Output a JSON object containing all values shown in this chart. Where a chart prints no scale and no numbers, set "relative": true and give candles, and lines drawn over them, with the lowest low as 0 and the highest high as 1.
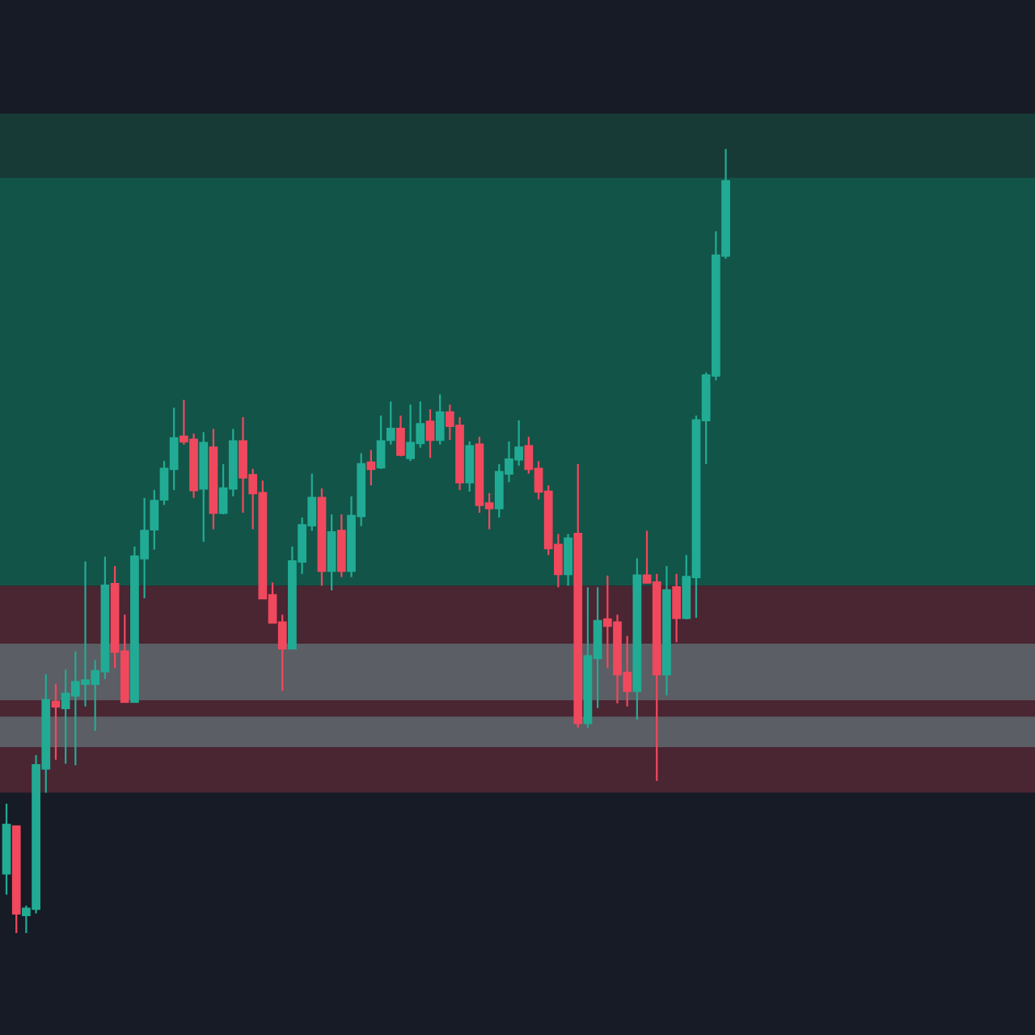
{
  "chart_data": {
    "type": "candlestick",
    "relative": true,
    "categories": [
      null,
      null,
      null,
      null,
      null,
      null,
      null,
      null,
      null,
      null,
      null,
      null,
      null,
      null,
      null,
      null,
      null,
      null,
      null,
      null,
      null,
      null,
      null,
      null,
      null,
      null,
      null,
      null,
      null,
      null,
      null,
      null,
      null,
      null,
      null,
      null,
      null,
      null,
      null,
      null,
      null,
      null,
      null,
      null,
      null,
      null,
      null,
      null,
      null,
      null,
      null,
      null,
      null,
      null,
      null,
      null,
      null,
      null,
      null,
      null,
      null,
      null,
      null,
      null,
      null,
      null,
      null,
      null,
      null,
      null,
      null,
      null,
      null,
      null
    ],
    "ohlc": [
      [
        0.076,
        0.165,
        0.049,
        0.138
      ],
      [
        0.136,
        0.136,
        0,
        0.025
      ],
      [
        0.023,
        0.035,
        0,
        0.031
      ],
      [
        0.031,
        0.227,
        0.025,
        0.214
      ],
      [
        0.21,
        0.33,
        0.179,
        0.297
      ],
      [
        0.295,
        0.318,
        0.221,
        0.289
      ],
      [
        0.287,
        0.336,
        0.216,
        0.305
      ],
      [
        0.303,
        0.359,
        0.214,
        0.32
      ],
      [
        0.318,
        0.474,
        0.289,
        0.322
      ],
      [
        0.318,
        0.348,
        0.258,
        0.334
      ],
      [
        0.334,
        0.48,
        0.324,
        0.443
      ],
      [
        0.445,
        0.468,
        0.338,
        0.359
      ],
      [
        0.359,
        0.406,
        0.295,
        0.295
      ],
      [
        0.295,
        0.493,
        0.295,
        0.48
      ],
      [
        0.478,
        0.555,
        0.427,
        0.513
      ],
      [
        0.515,
        0.565,
        0.489,
        0.551
      ],
      [
        0.553,
        0.602,
        0.546,
        0.592
      ],
      [
        0.592,
        0.67,
        0.565,
        0.631
      ],
      [
        0.633,
        0.68,
        0.623,
        0.627
      ],
      [
        0.629,
        0.637,
        0.555,
        0.565
      ],
      [
        0.567,
        0.639,
        0.499,
        0.625
      ],
      [
        0.619,
        0.643,
        0.515,
        0.536
      ],
      [
        0.536,
        0.598,
        0.534,
        0.567
      ],
      [
        0.567,
        0.643,
        0.557,
        0.627
      ],
      [
        0.627,
        0.658,
        0.536,
        0.581
      ],
      [
        0.584,
        0.592,
        0.515,
        0.561
      ],
      [
        0.561,
        0.577,
        0.427,
        0.427
      ],
      [
        0.431,
        0.447,
        0.396,
        0.396
      ],
      [
        0.396,
        0.406,
        0.309,
        0.363
      ],
      [
        0.363,
        0.493,
        0.363,
        0.474
      ],
      [
        0.474,
        0.53,
        0.458,
        0.52
      ],
      [
        0.52,
        0.586,
        0.513,
        0.555
      ],
      [
        0.555,
        0.567,
        0.443,
        0.462
      ],
      [
        0.462,
        0.534,
        0.437,
        0.511
      ],
      [
        0.513,
        0.534,
        0.454,
        0.462
      ],
      [
        0.462,
        0.557,
        0.454,
        0.532
      ],
      [
        0.532,
        0.612,
        0.519,
        0.598
      ],
      [
        0.6,
        0.616,
        0.571,
        0.592
      ],
      [
        0.594,
        0.66,
        0.592,
        0.627
      ],
      [
        0.629,
        0.678,
        0.623,
        0.643
      ],
      [
        0.643,
        0.66,
        0.608,
        0.61
      ],
      [
        0.606,
        0.674,
        0.602,
        0.625
      ],
      [
        0.625,
        0.678,
        0.619,
        0.649
      ],
      [
        0.652,
        0.668,
        0.606,
        0.629
      ],
      [
        0.629,
        0.687,
        0.623,
        0.664
      ],
      [
        0.664,
        0.674,
        0.629,
        0.647
      ],
      [
        0.647,
        0.658,
        0.565,
        0.575
      ],
      [
        0.575,
        0.627,
        0.563,
        0.621
      ],
      [
        0.623,
        0.633,
        0.536,
        0.546
      ],
      [
        0.548,
        0.561,
        0.515,
        0.542
      ],
      [
        0.542,
        0.598,
        0.53,
        0.588
      ],
      [
        0.586,
        0.627,
        0.575,
        0.604
      ],
      [
        0.604,
        0.654,
        0.596,
        0.619
      ],
      [
        0.621,
        0.633,
        0.586,
        0.592
      ],
      [
        0.592,
        0.602,
        0.553,
        0.563
      ],
      [
        0.563,
        0.571,
        0.482,
        0.491
      ],
      [
        0.495,
        0.509,
        0.441,
        0.458
      ],
      [
        0.458,
        0.509,
        0.443,
        0.503
      ],
      [
        0.509,
        0.598,
        0.262,
        0.268
      ],
      [
        0.268,
        0.441,
        0.262,
        0.353
      ],
      [
        0.351,
        0.441,
        0.287,
        0.398
      ],
      [
        0.4,
        0.456,
        0.338,
        0.392
      ],
      [
        0.396,
        0.406,
        0.293,
        0.33
      ],
      [
        0.332,
        0.379,
        0.289,
        0.309
      ],
      [
        0.309,
        0.478,
        0.272,
        0.456
      ],
      [
        0.456,
        0.513,
        0.447,
        0.447
      ],
      [
        0.447,
        0.458,
        0.194,
        0.33
      ],
      [
        0.33,
        0.468,
        0.303,
        0.437
      ],
      [
        0.441,
        0.458,
        0.371,
        0.402
      ],
      [
        0.402,
        0.482,
        0.4,
        0.454
      ],
      [
        0.454,
        0.66,
        0.402,
        0.654
      ],
      [
        0.654,
        0.715,
        0.598,
        0.711
      ],
      [
        0.711,
        0.895,
        0.705,
        0.864
      ],
      [
        0.864,
        1,
        0.86,
        0.959
      ]
    ],
    "colors": [
      "#22ab94",
      "#f0485d",
      "#22ab94",
      "#22ab94",
      "#22ab94",
      "#f0485d",
      "#22ab94",
      "#22ab94",
      "#22ab94",
      "#22ab94",
      "#22ab94",
      "#f0485d",
      "#f0485d",
      "#22ab94",
      "#22ab94",
      "#22ab94",
      "#22ab94",
      "#22ab94",
      "#f0485d",
      "#f0485d",
      "#22ab94",
      "#f0485d",
      "#22ab94",
      "#22ab94",
      "#f0485d",
      "#f0485d",
      "#f0485d",
      "#f0485d",
      "#f0485d",
      "#22ab94",
      "#22ab94",
      "#22ab94",
      "#f0485d",
      "#22ab94",
      "#f0485d",
      "#22ab94",
      "#22ab94",
      "#f0485d",
      "#22ab94",
      "#22ab94",
      "#f0485d",
      "#22ab94",
      "#22ab94",
      "#f0485d",
      "#22ab94",
      "#f0485d",
      "#f0485d",
      "#22ab94",
      "#f0485d",
      "#f0485d",
      "#22ab94",
      "#22ab94",
      "#22ab94",
      "#f0485d",
      "#f0485d",
      "#f0485d",
      "#f0485d",
      "#22ab94",
      "#f0485d",
      "#22ab94",
      "#22ab94",
      "#f0485d",
      "#f0485d",
      "#f0485d",
      "#22ab94",
      "#f0485d",
      "#f0485d",
      "#22ab94",
      "#f0485d",
      "#22ab94",
      "#22ab94",
      "#22ab94",
      "#22ab94",
      "#22ab94"
    ],
    "bands": [
      {
        "axis": "y",
        "from": 0.179,
        "to": 0.443,
        "color": "#4a2532"
      },
      {
        "axis": "y",
        "from": 0.443,
        "to": 0.963,
        "color": "#125448"
      },
      {
        "axis": "y",
        "from": 0.963,
        "to": 1.045,
        "color": "#173a37"
      },
      {
        "axis": "y",
        "from": 0.297,
        "to": 0.369,
        "color": "#5b5e64"
      },
      {
        "axis": "y",
        "from": 0.237,
        "to": 0.276,
        "color": "#5b5e64"
      }
    ]
  }
}
